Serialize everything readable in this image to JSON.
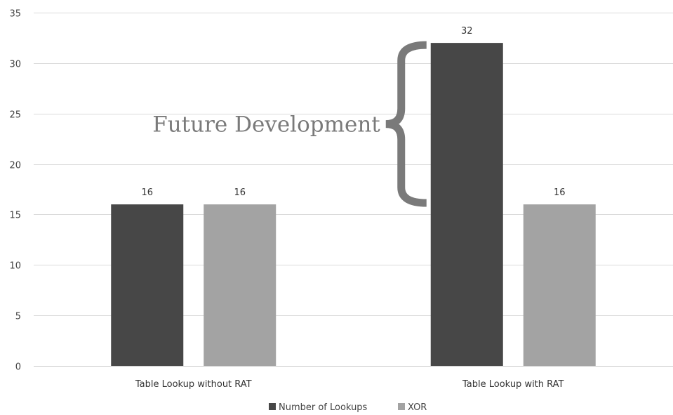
{
  "chart_data": {
    "type": "bar",
    "title": "",
    "xlabel": "",
    "ylabel": "",
    "categories": [
      "Table Lookup without RAT",
      "Table Lookup with RAT"
    ],
    "series": [
      {
        "name": "Number of Lookups",
        "values": [
          16,
          32
        ],
        "color": "#474747"
      },
      {
        "name": "XOR",
        "values": [
          16,
          16
        ],
        "color": "#a3a3a3"
      }
    ],
    "ylim": [
      0,
      35
    ],
    "yticks": [
      0,
      5,
      10,
      15,
      20,
      25,
      30,
      35
    ],
    "grid": true,
    "legend_position": "bottom",
    "annotation": {
      "text": "Future Development",
      "brace_range": [
        16,
        32
      ],
      "category": "Table Lookup with RAT",
      "series": "Number of Lookups",
      "color": "#7a7a7a"
    }
  }
}
